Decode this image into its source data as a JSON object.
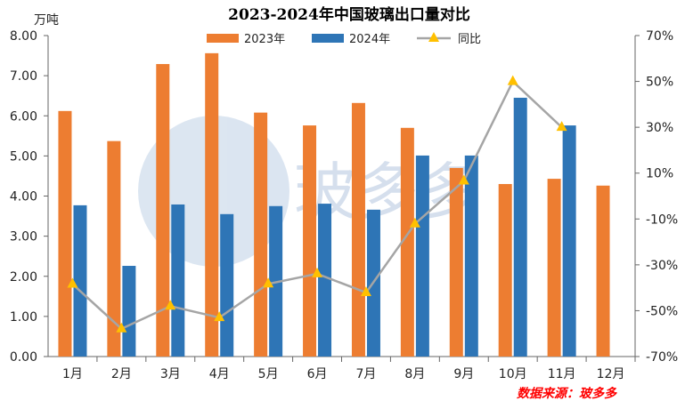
{
  "chart_data": {
    "type": "bar",
    "title": "2023-2024年中国玻璃出口量对比",
    "ylabel": "万吨",
    "categories": [
      "1月",
      "2月",
      "3月",
      "4月",
      "5月",
      "6月",
      "7月",
      "8月",
      "9月",
      "10月",
      "11月",
      "12月"
    ],
    "series": [
      {
        "name": "2023年",
        "type": "bar",
        "axis": "left",
        "color": "#ED7D31",
        "values": [
          6.12,
          5.37,
          7.29,
          7.56,
          6.08,
          5.76,
          6.32,
          5.7,
          4.7,
          4.3,
          4.43,
          4.26
        ]
      },
      {
        "name": "2024年",
        "type": "bar",
        "axis": "left",
        "color": "#2E75B6",
        "values": [
          3.77,
          2.26,
          3.79,
          3.55,
          3.75,
          3.81,
          3.66,
          5.01,
          5.01,
          6.45,
          5.76,
          null
        ]
      },
      {
        "name": "同比",
        "type": "line",
        "axis": "right",
        "color": "#A5A5A5",
        "marker_color": "#FFC000",
        "values": [
          -38.4,
          -57.9,
          -48.0,
          -53.0,
          -38.3,
          -33.9,
          -42.1,
          -12.1,
          6.6,
          50.0,
          30.0,
          null
        ]
      }
    ],
    "ylim": [
      0,
      8
    ],
    "yticks": [
      "0.00",
      "1.00",
      "2.00",
      "3.00",
      "4.00",
      "5.00",
      "6.00",
      "7.00",
      "8.00"
    ],
    "y2lim": [
      -70,
      70
    ],
    "y2ticks": [
      "-70%",
      "-50%",
      "-30%",
      "-10%",
      "10%",
      "30%",
      "50%",
      "70%"
    ],
    "legend_position": "top-center",
    "grid": false
  },
  "watermark": "玻多多 boduoduo.com",
  "source": "数据来源：玻多多"
}
